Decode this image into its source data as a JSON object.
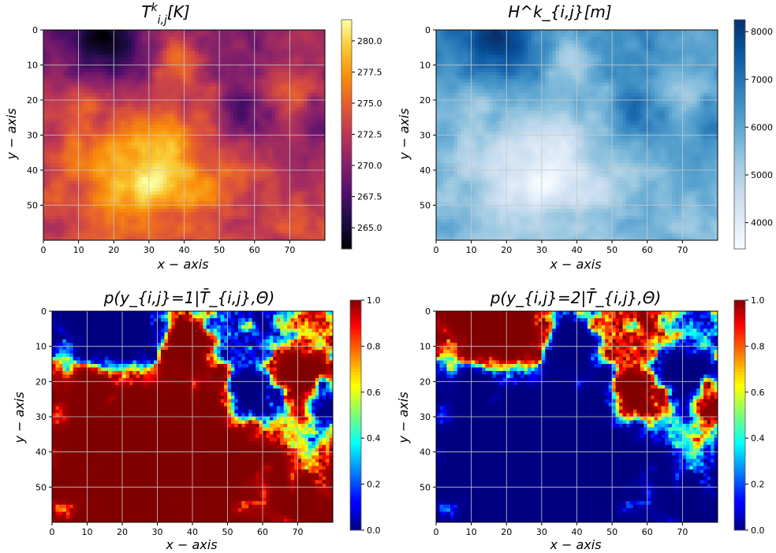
{
  "chart_data": [
    {
      "type": "heatmap",
      "id": "temperature",
      "title": "T^k_{i,j}[K]",
      "title_html": "T<tspan baseline-shift=\"super\" font-size=\"70%\">k</tspan><tspan baseline-shift=\"sub\" font-size=\"70%\">i,j</tspan>[K]",
      "xlabel": "x − axis",
      "ylabel": "y − axis",
      "xlim": [
        0,
        80
      ],
      "ylim": [
        60,
        0
      ],
      "xticks": [
        0,
        10,
        20,
        30,
        40,
        50,
        60,
        70
      ],
      "yticks": [
        0,
        10,
        20,
        30,
        40,
        50
      ],
      "grid": true,
      "colormap": "inferno",
      "colorbar": {
        "range": [
          263.3,
          281.7
        ],
        "ticks": [
          "265.0",
          "267.5",
          "270.0",
          "272.5",
          "275.0",
          "277.5",
          "280.0"
        ],
        "tick_values": [
          265.0,
          267.5,
          270.0,
          272.5,
          275.0,
          277.5,
          280.0
        ]
      },
      "grid_size": [
        60,
        80
      ]
    },
    {
      "type": "heatmap",
      "id": "height",
      "title": "H^k_{i,j}[m]",
      "xlabel": "x − axis",
      "ylabel": "y − axis",
      "xlim": [
        0,
        80
      ],
      "ylim": [
        60,
        0
      ],
      "xticks": [
        0,
        10,
        20,
        30,
        40,
        50,
        60,
        70
      ],
      "yticks": [
        0,
        10,
        20,
        30,
        40,
        50
      ],
      "grid": true,
      "colormap": "Blues",
      "colorbar": {
        "range": [
          3450,
          8250
        ],
        "ticks": [
          "4000",
          "5000",
          "6000",
          "7000",
          "8000"
        ],
        "tick_values": [
          4000,
          5000,
          6000,
          7000,
          8000
        ]
      },
      "grid_size": [
        60,
        80
      ]
    },
    {
      "type": "heatmap",
      "id": "prob-class-1",
      "title": "p(y_{i,j}=1|T̄_{i,j},Θ)",
      "xlabel": "x − axis",
      "ylabel": "y − axis",
      "xlim": [
        0,
        80
      ],
      "ylim": [
        60,
        0
      ],
      "xticks": [
        0,
        10,
        20,
        30,
        40,
        50,
        60,
        70
      ],
      "yticks": [
        0,
        10,
        20,
        30,
        40,
        50
      ],
      "grid": true,
      "colormap": "jet",
      "colorbar": {
        "range": [
          0.0,
          1.0
        ],
        "ticks": [
          "0.0",
          "0.2",
          "0.4",
          "0.6",
          "0.8",
          "1.0"
        ],
        "tick_values": [
          0.0,
          0.2,
          0.4,
          0.6,
          0.8,
          1.0
        ]
      },
      "grid_size": [
        60,
        80
      ]
    },
    {
      "type": "heatmap",
      "id": "prob-class-2",
      "title": "p(y_{i,j}=2|T̄_{i,j},Θ)",
      "xlabel": "x − axis",
      "ylabel": "y − axis",
      "xlim": [
        0,
        80
      ],
      "ylim": [
        60,
        0
      ],
      "xticks": [
        0,
        10,
        20,
        30,
        40,
        50,
        60,
        70
      ],
      "yticks": [
        0,
        10,
        20,
        30,
        40,
        50
      ],
      "grid": true,
      "colormap": "jet",
      "colorbar": {
        "range": [
          0.0,
          1.0
        ],
        "ticks": [
          "0.0",
          "0.2",
          "0.4",
          "0.6",
          "0.8",
          "1.0"
        ],
        "tick_values": [
          0.0,
          0.2,
          0.4,
          0.6,
          0.8,
          1.0
        ]
      },
      "grid_size": [
        60,
        80
      ]
    }
  ],
  "colors": {
    "grid": "#c8c8c8",
    "axis": "#000000",
    "background": "#ffffff"
  }
}
